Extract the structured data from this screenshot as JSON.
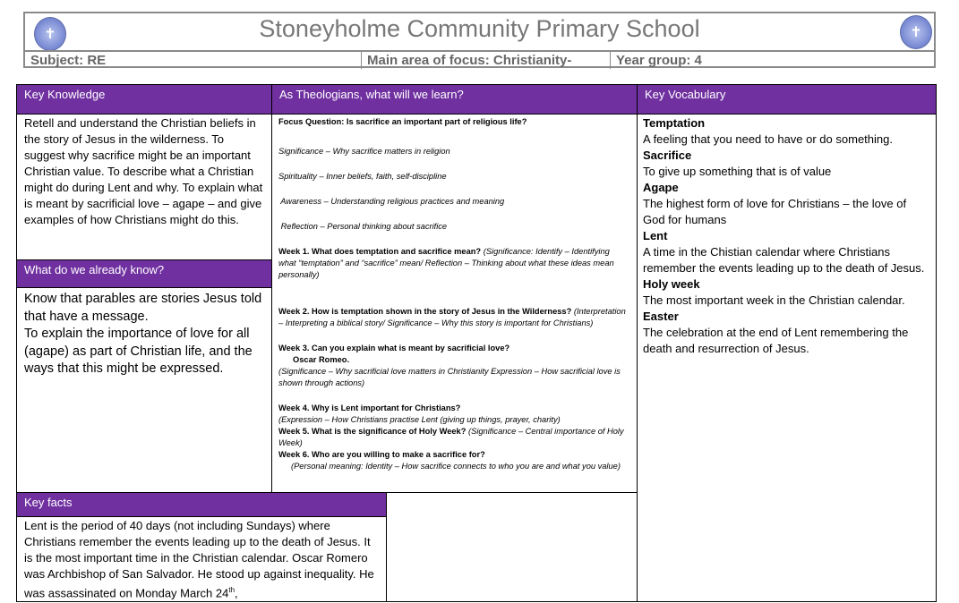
{
  "header": {
    "school": "Stoneyholme Community Primary School",
    "subject": "Subject: RE",
    "focus": "Main area of focus: Christianity-",
    "year": "Year group: 4"
  },
  "colors": {
    "purple": "#7030a0",
    "header_gray": "#777777"
  },
  "key_knowledge": {
    "title": "Key Knowledge",
    "text": "Retell and understand the Christian beliefs in the story of Jesus in the wilderness. To suggest why sacrifice might be an important Christian value. To describe what a Christian might do during Lent and why. To explain what is meant by sacrificial love – agape – and give examples of how Christians might do this."
  },
  "already_know": {
    "title": "What do we already know?",
    "items": [
      "Know that parables are stories Jesus told that have a message.",
      "To explain the importance of love for all (agape) as part of Christian life, and the ways that this might be expressed."
    ]
  },
  "theologians": {
    "title": "As Theologians, what will we learn?",
    "focus": "Focus Question: Is sacrifice an important part of religious life?",
    "strands": [
      "Significance – Why sacrifice matters in religion",
      "Spirituality – Inner beliefs, faith, self-discipline",
      " Awareness – Understanding religious practices and meaning",
      " Reflection – Personal thinking about sacrifice"
    ],
    "weeks": [
      {
        "q": "Week 1. What does temptation and sacrifice mean?",
        "note": "(Significance: Identify – Identifying what “temptation” and “sacrifice” mean/ Reflection – Thinking about what these ideas mean personally)"
      },
      {
        "q": "Week 2. How is temptation shown in the story of Jesus in the Wilderness?",
        "note": "(Interpretation – Interpreting a biblical story/ Significance – Why this story is important for Christians)"
      },
      {
        "q": "Week 3. Can you explain what is meant by sacrificial love?",
        "extra": "Oscar Romeo.",
        "note": "(Significance – Why sacrificial love matters in Christianity  Expression – How sacrificial love is shown through actions)"
      },
      {
        "q": "Week 4. Why is Lent important for Christians?",
        "note": "(Expression – How Christians practise Lent (giving up things, prayer, charity)"
      },
      {
        "q": "Week 5. What is the significance of Holy Week?",
        "note": "(Significance – Central importance of Holy Week)"
      },
      {
        "q": "Week 6. Who are you willing to make a sacrifice for?",
        "note": "(Personal meaning: Identity – How sacrifice connects to who you are and what you value)"
      }
    ]
  },
  "vocabulary": {
    "title": "Key Vocabulary",
    "terms": [
      {
        "term": "Temptation",
        "def": "A feeling that you need to have or do something."
      },
      {
        "term": "Sacrifice",
        "def": "To give up something that is of value"
      },
      {
        "term": "Agape",
        "def": "The highest form of love for Christians – the love of God for humans"
      },
      {
        "term": "Lent",
        "def": "A time in the Chistian calendar where Christians remember the events leading up to the death of Jesus."
      },
      {
        "term": "Holy week",
        "def": "The most important week in the Christian calendar."
      },
      {
        "term": "Easter",
        "def": "The celebration at the end of Lent remembering the death and resurrection of Jesus."
      }
    ]
  },
  "key_facts": {
    "title": "Key facts",
    "text": "Lent is the period of 40 days (not including Sundays) where Christians remember the events leading up to the death of Jesus. It is the most important time in the Christian calendar. Oscar Romero was Archbishop of San Salvador. He stood up against inequality. He was assassinated on Monday March 24",
    "sup": "th",
    "tail": ","
  }
}
